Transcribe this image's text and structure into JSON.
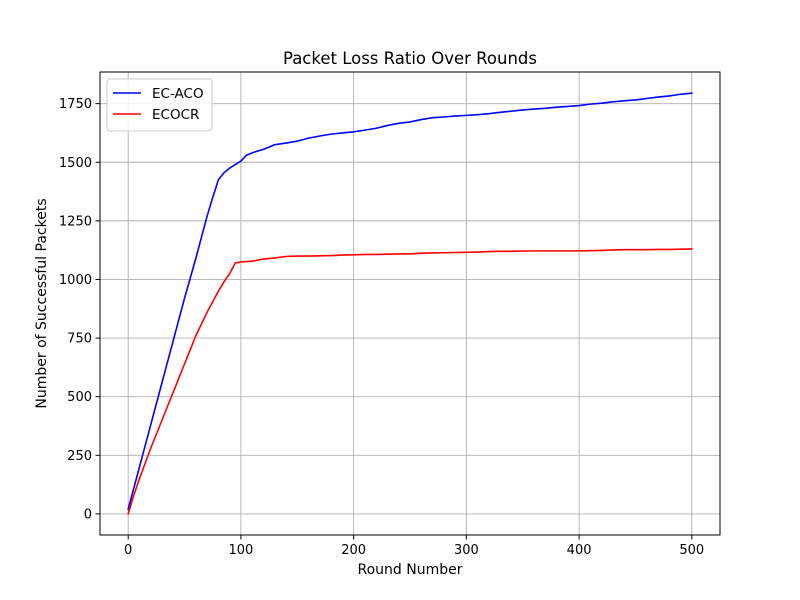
{
  "chart_data": {
    "type": "line",
    "title": "Packet Loss Ratio Over Rounds",
    "xlabel": "Round Number",
    "ylabel": "Number of Successful Packets",
    "xlim": [
      -25,
      525
    ],
    "ylim": [
      -90,
      1885
    ],
    "xticks": [
      0,
      100,
      200,
      300,
      400,
      500
    ],
    "yticks": [
      0,
      250,
      500,
      750,
      1000,
      1250,
      1500,
      1750
    ],
    "grid": true,
    "legend": "top-left",
    "series": [
      {
        "name": "EC-ACO",
        "color": "#0000ff",
        "points": [
          [
            0,
            20
          ],
          [
            5,
            110
          ],
          [
            10,
            200
          ],
          [
            20,
            380
          ],
          [
            30,
            560
          ],
          [
            40,
            740
          ],
          [
            50,
            920
          ],
          [
            60,
            1090
          ],
          [
            65,
            1180
          ],
          [
            70,
            1270
          ],
          [
            75,
            1350
          ],
          [
            80,
            1425
          ],
          [
            85,
            1455
          ],
          [
            90,
            1475
          ],
          [
            95,
            1490
          ],
          [
            100,
            1505
          ],
          [
            105,
            1530
          ],
          [
            110,
            1540
          ],
          [
            115,
            1548
          ],
          [
            120,
            1555
          ],
          [
            130,
            1575
          ],
          [
            140,
            1582
          ],
          [
            150,
            1590
          ],
          [
            160,
            1603
          ],
          [
            170,
            1612
          ],
          [
            180,
            1620
          ],
          [
            190,
            1625
          ],
          [
            200,
            1630
          ],
          [
            210,
            1637
          ],
          [
            220,
            1645
          ],
          [
            230,
            1657
          ],
          [
            240,
            1666
          ],
          [
            250,
            1672
          ],
          [
            260,
            1682
          ],
          [
            270,
            1690
          ],
          [
            280,
            1693
          ],
          [
            290,
            1697
          ],
          [
            300,
            1700
          ],
          [
            310,
            1703
          ],
          [
            320,
            1707
          ],
          [
            330,
            1713
          ],
          [
            340,
            1718
          ],
          [
            350,
            1723
          ],
          [
            360,
            1727
          ],
          [
            370,
            1730
          ],
          [
            380,
            1735
          ],
          [
            390,
            1738
          ],
          [
            400,
            1742
          ],
          [
            410,
            1748
          ],
          [
            420,
            1752
          ],
          [
            430,
            1758
          ],
          [
            440,
            1762
          ],
          [
            450,
            1766
          ],
          [
            460,
            1772
          ],
          [
            470,
            1778
          ],
          [
            480,
            1783
          ],
          [
            490,
            1790
          ],
          [
            500,
            1795
          ]
        ]
      },
      {
        "name": "ECOCR",
        "color": "#ff0000",
        "points": [
          [
            0,
            0
          ],
          [
            5,
            80
          ],
          [
            10,
            150
          ],
          [
            20,
            280
          ],
          [
            30,
            400
          ],
          [
            40,
            520
          ],
          [
            50,
            640
          ],
          [
            60,
            760
          ],
          [
            70,
            860
          ],
          [
            80,
            950
          ],
          [
            85,
            990
          ],
          [
            90,
            1025
          ],
          [
            95,
            1070
          ],
          [
            100,
            1075
          ],
          [
            110,
            1078
          ],
          [
            120,
            1087
          ],
          [
            130,
            1092
          ],
          [
            140,
            1098
          ],
          [
            150,
            1100
          ],
          [
            160,
            1100
          ],
          [
            170,
            1101
          ],
          [
            180,
            1102
          ],
          [
            190,
            1104
          ],
          [
            200,
            1105
          ],
          [
            210,
            1107
          ],
          [
            220,
            1107
          ],
          [
            230,
            1108
          ],
          [
            240,
            1109
          ],
          [
            250,
            1109
          ],
          [
            260,
            1112
          ],
          [
            270,
            1113
          ],
          [
            280,
            1114
          ],
          [
            290,
            1115
          ],
          [
            300,
            1116
          ],
          [
            310,
            1117
          ],
          [
            320,
            1119
          ],
          [
            330,
            1120
          ],
          [
            340,
            1120
          ],
          [
            350,
            1121
          ],
          [
            360,
            1122
          ],
          [
            370,
            1122
          ],
          [
            380,
            1122
          ],
          [
            390,
            1122
          ],
          [
            400,
            1122
          ],
          [
            410,
            1123
          ],
          [
            420,
            1124
          ],
          [
            430,
            1126
          ],
          [
            440,
            1127
          ],
          [
            450,
            1127
          ],
          [
            460,
            1127
          ],
          [
            470,
            1128
          ],
          [
            480,
            1128
          ],
          [
            490,
            1129
          ],
          [
            500,
            1130
          ]
        ]
      }
    ]
  }
}
